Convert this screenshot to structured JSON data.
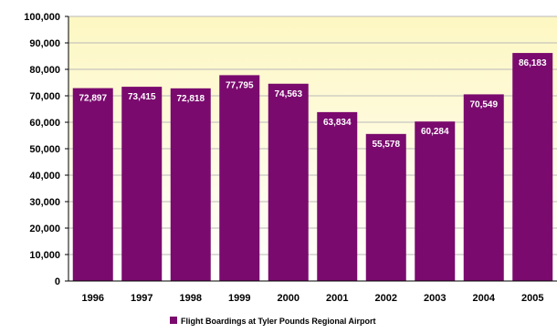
{
  "chart_data": {
    "type": "bar",
    "categories": [
      "1996",
      "1997",
      "1998",
      "1999",
      "2000",
      "2001",
      "2002",
      "2003",
      "2004",
      "2005"
    ],
    "series": [
      {
        "name": "Flight Boardings at Tyler Pounds Regional Airport",
        "values": [
          72897,
          73415,
          72818,
          77795,
          74563,
          63834,
          55578,
          60284,
          70549,
          86183
        ],
        "labels": [
          "72,897",
          "73,415",
          "72,818",
          "77,795",
          "74,563",
          "63,834",
          "55,578",
          "60,284",
          "70,549",
          "86,183"
        ]
      }
    ],
    "ylim": [
      0,
      100000
    ],
    "yticks": [
      0,
      10000,
      20000,
      30000,
      40000,
      50000,
      60000,
      70000,
      80000,
      90000,
      100000
    ],
    "ytick_labels": [
      "0",
      "10,000",
      "20,000",
      "30,000",
      "40,000",
      "50,000",
      "60,000",
      "70,000",
      "80,000",
      "90,000",
      "100,000"
    ],
    "grid": true,
    "legend_position": "bottom",
    "colors": {
      "bar": "#7a0a6e",
      "plot_bg_top": "#fdf7c2",
      "plot_bg_bottom": "#ffffff",
      "grid": "#b9b9b9"
    }
  }
}
